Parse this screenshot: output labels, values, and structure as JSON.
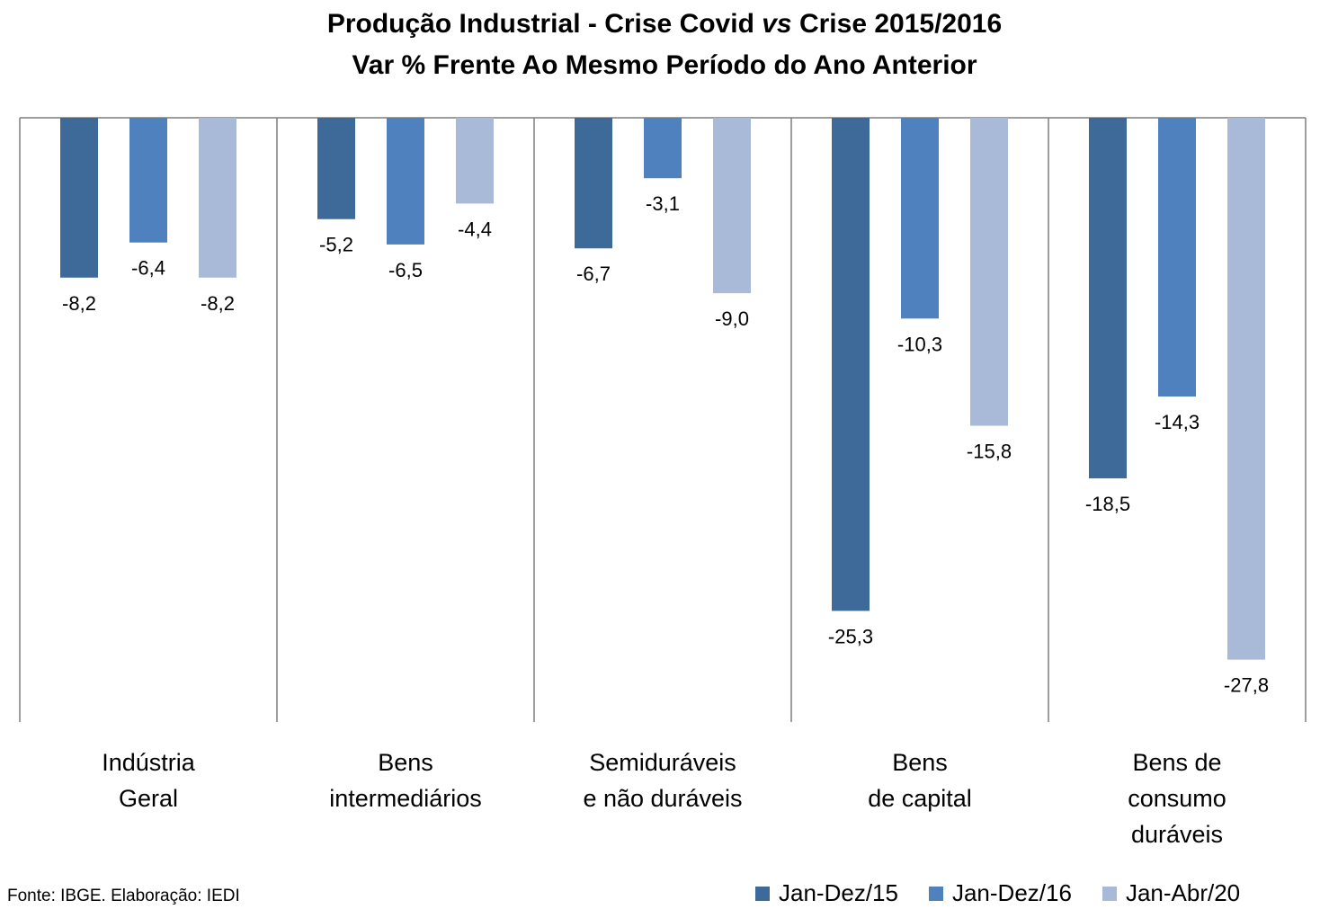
{
  "title": {
    "line1_a": "Produção Industrial - Crise Covid ",
    "line1_b": "vs",
    "line1_c": " Crise 2015/2016",
    "line2": "Var % Frente Ao Mesmo Período do Ano Anterior"
  },
  "source": "Fonte: IBGE. Elaboração: IEDI",
  "chart_data": {
    "type": "bar",
    "categories": [
      [
        "Indústria",
        "Geral"
      ],
      [
        "Bens",
        "intermediários"
      ],
      [
        "Semiduráveis",
        "e não duráveis"
      ],
      [
        "Bens",
        "de capital"
      ],
      [
        "Bens de",
        "consumo",
        "duráveis"
      ]
    ],
    "series": [
      {
        "name": "Jan-Dez/15",
        "color": "#3E6A9A",
        "values": [
          -8.2,
          -5.2,
          -6.7,
          -25.3,
          -18.5
        ],
        "labels": [
          "-8,2",
          "-5,2",
          "-6,7",
          "-25,3",
          "-18,5"
        ]
      },
      {
        "name": "Jan-Dez/16",
        "color": "#4E81BD",
        "values": [
          -6.4,
          -6.5,
          -3.1,
          -10.3,
          -14.3
        ],
        "labels": [
          "-6,4",
          "-6,5",
          "-3,1",
          "-10,3",
          "-14,3"
        ]
      },
      {
        "name": "Jan-Abr/20",
        "color": "#A9B9D8",
        "values": [
          -8.2,
          -4.4,
          -9.0,
          -15.8,
          -27.8
        ],
        "labels": [
          "-8,2",
          "-4,4",
          "-9,0",
          "-15,8",
          "-27,8"
        ]
      }
    ],
    "ylim": [
      -31,
      0
    ],
    "grid": false,
    "legend_position": "bottom-right"
  }
}
